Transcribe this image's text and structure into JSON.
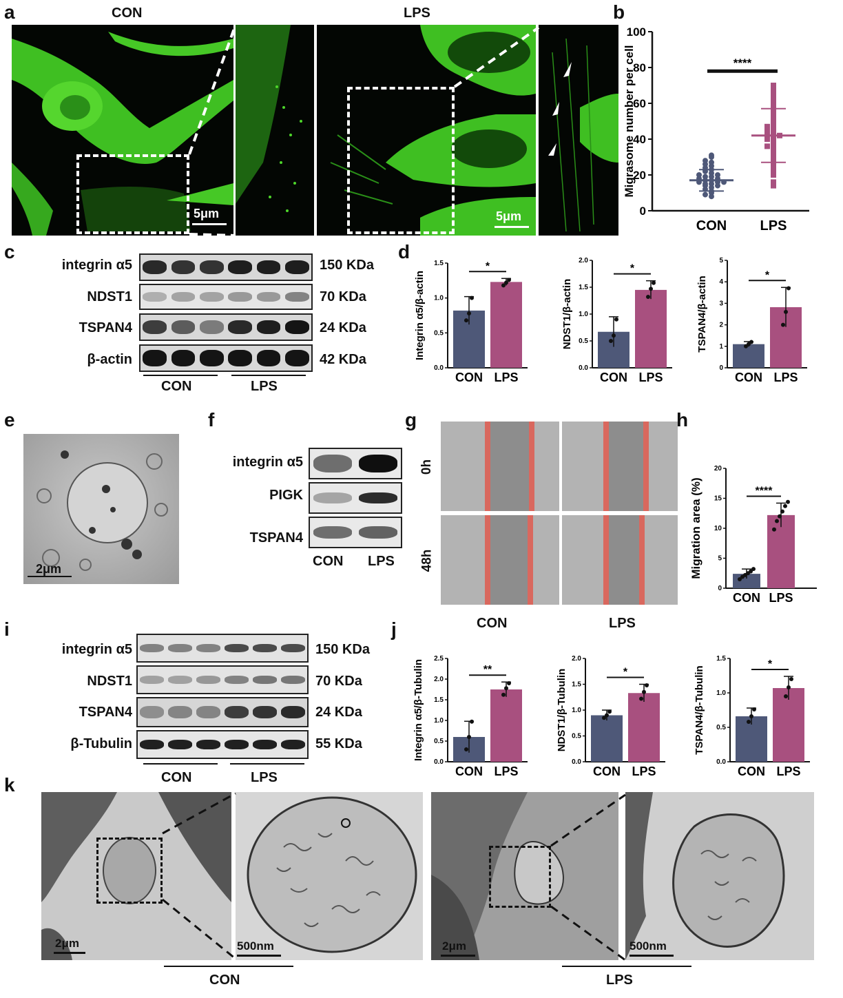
{
  "panel_letters": {
    "a": "a",
    "b": "b",
    "c": "c",
    "d": "d",
    "e": "e",
    "f": "f",
    "g": "g",
    "h": "h",
    "i": "i",
    "j": "j",
    "k": "k"
  },
  "panel_a": {
    "con_title": "CON",
    "lps_title": "LPS",
    "scale_con": "5μm",
    "scale_lps": "5μm"
  },
  "panel_c": {
    "rows": [
      {
        "label": "integrin α5",
        "kda": "150 KDa"
      },
      {
        "label": "NDST1",
        "kda": "70 KDa"
      },
      {
        "label": "TSPAN4",
        "kda": "24 KDa"
      },
      {
        "label": "β-actin",
        "kda": "42 KDa"
      }
    ],
    "groups": [
      "CON",
      "LPS"
    ]
  },
  "panel_e": {
    "scale": "2μm"
  },
  "panel_f": {
    "rows": [
      "integrin α5",
      "PIGK",
      "TSPAN4"
    ],
    "groups": [
      "CON",
      "LPS"
    ]
  },
  "panel_g": {
    "rows": [
      "0h",
      "48h"
    ],
    "cols": [
      "CON",
      "LPS"
    ]
  },
  "panel_i": {
    "rows": [
      {
        "label": "integrin α5",
        "kda": "150 KDa"
      },
      {
        "label": "NDST1",
        "kda": "70 KDa"
      },
      {
        "label": "TSPAN4",
        "kda": "24 KDa"
      },
      {
        "label": "β-Tubulin",
        "kda": "55 KDa"
      }
    ],
    "groups": [
      "CON",
      "LPS"
    ]
  },
  "panel_k": {
    "scale_1": "2μm",
    "scale_2": "500nm",
    "scale_3": "2μm",
    "scale_4": "500nm",
    "con": "CON",
    "lps": "LPS"
  },
  "colors": {
    "con": "#4e5878",
    "lps": "#a8507f",
    "green": "#4dd62a"
  },
  "chart_data": [
    {
      "id": "b",
      "type": "scatter",
      "ylabel": "Migrasome number per cell",
      "categories": [
        "CON",
        "LPS"
      ],
      "ylim": [
        0,
        100
      ],
      "yticks": [
        0,
        20,
        40,
        60,
        80,
        100
      ],
      "sig": "****",
      "means": [
        17,
        42
      ],
      "sd": [
        6,
        15
      ],
      "points": [
        [
          11,
          12,
          13,
          14,
          14,
          15,
          15,
          16,
          16,
          16,
          17,
          17,
          18,
          18,
          19,
          19,
          20,
          20,
          21,
          22,
          23,
          24,
          25,
          26,
          27,
          8,
          10,
          9,
          28,
          30,
          31
        ],
        [
          14,
          16,
          20,
          22,
          25,
          28,
          30,
          32,
          33,
          35,
          36,
          38,
          39,
          40,
          41,
          42,
          42,
          43,
          44,
          45,
          46,
          48,
          50,
          52,
          53,
          55,
          57,
          60,
          62,
          65,
          68,
          70,
          47
        ]
      ]
    },
    {
      "id": "d1",
      "type": "bar",
      "ylabel": "Integrin α5/β-actin",
      "categories": [
        "CON",
        "LPS"
      ],
      "values": [
        0.82,
        1.23
      ],
      "err": [
        0.2,
        0.05
      ],
      "ylim": [
        0,
        1.5
      ],
      "yticks": [
        0.0,
        0.5,
        1.0,
        1.5
      ],
      "sig": "*",
      "points": [
        [
          0.68,
          0.78,
          1.0
        ],
        [
          1.18,
          1.22,
          1.26
        ]
      ]
    },
    {
      "id": "d2",
      "type": "bar",
      "ylabel": "NDST1/β-actin",
      "categories": [
        "CON",
        "LPS"
      ],
      "values": [
        0.67,
        1.45
      ],
      "err": [
        0.28,
        0.17
      ],
      "ylim": [
        0,
        2.0
      ],
      "yticks": [
        0.0,
        0.5,
        1.0,
        1.5,
        2.0
      ],
      "sig": "*",
      "points": [
        [
          0.5,
          0.6,
          0.9
        ],
        [
          1.32,
          1.47,
          1.58
        ]
      ]
    },
    {
      "id": "d3",
      "type": "bar",
      "ylabel": "TSPAN4/β-actin",
      "categories": [
        "CON",
        "LPS"
      ],
      "values": [
        1.1,
        2.82
      ],
      "err": [
        0.12,
        0.92
      ],
      "ylim": [
        0,
        5
      ],
      "yticks": [
        0,
        1,
        2,
        3,
        4,
        5
      ],
      "sig": "*",
      "points": [
        [
          1.0,
          1.1,
          1.2
        ],
        [
          2.0,
          2.6,
          3.7
        ]
      ]
    },
    {
      "id": "h",
      "type": "bar",
      "ylabel": "Migration area (%)",
      "categories": [
        "CON",
        "LPS"
      ],
      "values": [
        2.4,
        12.2
      ],
      "err": [
        0.8,
        2.0
      ],
      "ylim": [
        0,
        20
      ],
      "yticks": [
        0,
        5,
        10,
        15,
        20
      ],
      "sig": "****",
      "points": [
        [
          1.5,
          1.9,
          2.2,
          2.5,
          2.8,
          3.2
        ],
        [
          9.8,
          11.2,
          12.0,
          12.8,
          13.7,
          14.4
        ]
      ]
    },
    {
      "id": "j1",
      "type": "bar",
      "ylabel": "Integrin α5/β-Tubulin",
      "categories": [
        "CON",
        "LPS"
      ],
      "values": [
        0.6,
        1.75
      ],
      "err": [
        0.38,
        0.18
      ],
      "ylim": [
        0,
        2.5
      ],
      "yticks": [
        0.0,
        0.5,
        1.0,
        1.5,
        2.0,
        2.5
      ],
      "sig": "**",
      "points": [
        [
          0.3,
          0.6,
          0.97
        ],
        [
          1.62,
          1.78,
          1.9
        ]
      ]
    },
    {
      "id": "j2",
      "type": "bar",
      "ylabel": "NDST1/β-Tubulin",
      "categories": [
        "CON",
        "LPS"
      ],
      "values": [
        0.9,
        1.33
      ],
      "err": [
        0.1,
        0.17
      ],
      "ylim": [
        0,
        2.0
      ],
      "yticks": [
        0.0,
        0.5,
        1.0,
        1.5,
        2.0
      ],
      "sig": "*",
      "points": [
        [
          0.85,
          0.9,
          0.97
        ],
        [
          1.22,
          1.35,
          1.48
        ]
      ]
    },
    {
      "id": "j3",
      "type": "bar",
      "ylabel": "TSPAN4/β-Tubulin",
      "categories": [
        "CON",
        "LPS"
      ],
      "values": [
        0.66,
        1.07
      ],
      "err": [
        0.12,
        0.17
      ],
      "ylim": [
        0,
        1.5
      ],
      "yticks": [
        0.0,
        0.5,
        1.0,
        1.5
      ],
      "sig": "*",
      "points": [
        [
          0.58,
          0.66,
          0.76
        ],
        [
          0.95,
          1.08,
          1.2
        ]
      ]
    }
  ]
}
